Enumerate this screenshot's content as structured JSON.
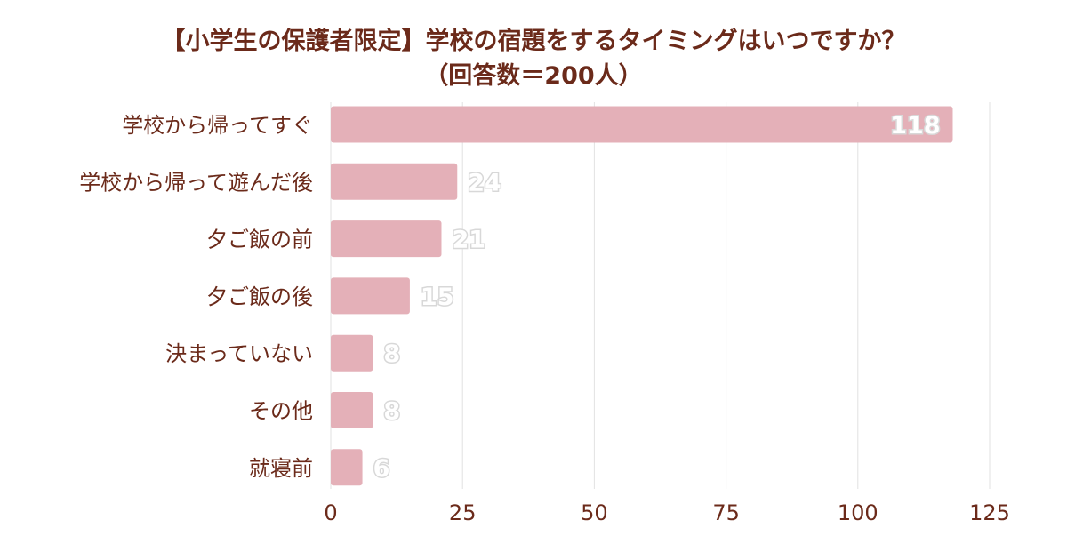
{
  "title": {
    "line1": "【小学生の保護者限定】学校の宿題をするタイミングはいつですか？",
    "line2": "（回答数＝200人）"
  },
  "colors": {
    "bar": "#e4b0b8",
    "text": "#6b2a1a",
    "grid": "#e2e2e2"
  },
  "chart_data": {
    "type": "bar",
    "orientation": "horizontal",
    "categories": [
      "学校から帰ってすぐ",
      "学校から帰って遊んだ後",
      "夕ご飯の前",
      "夕ご飯の後",
      "決まっていない",
      "その他",
      "就寝前"
    ],
    "values": [
      118,
      24,
      21,
      15,
      8,
      8,
      6
    ],
    "xlim": [
      0,
      125
    ],
    "xticks": [
      0,
      25,
      50,
      75,
      100,
      125
    ],
    "grid": true,
    "title": "【小学生の保護者限定】学校の宿題をするタイミングはいつですか？（回答数＝200人）"
  }
}
